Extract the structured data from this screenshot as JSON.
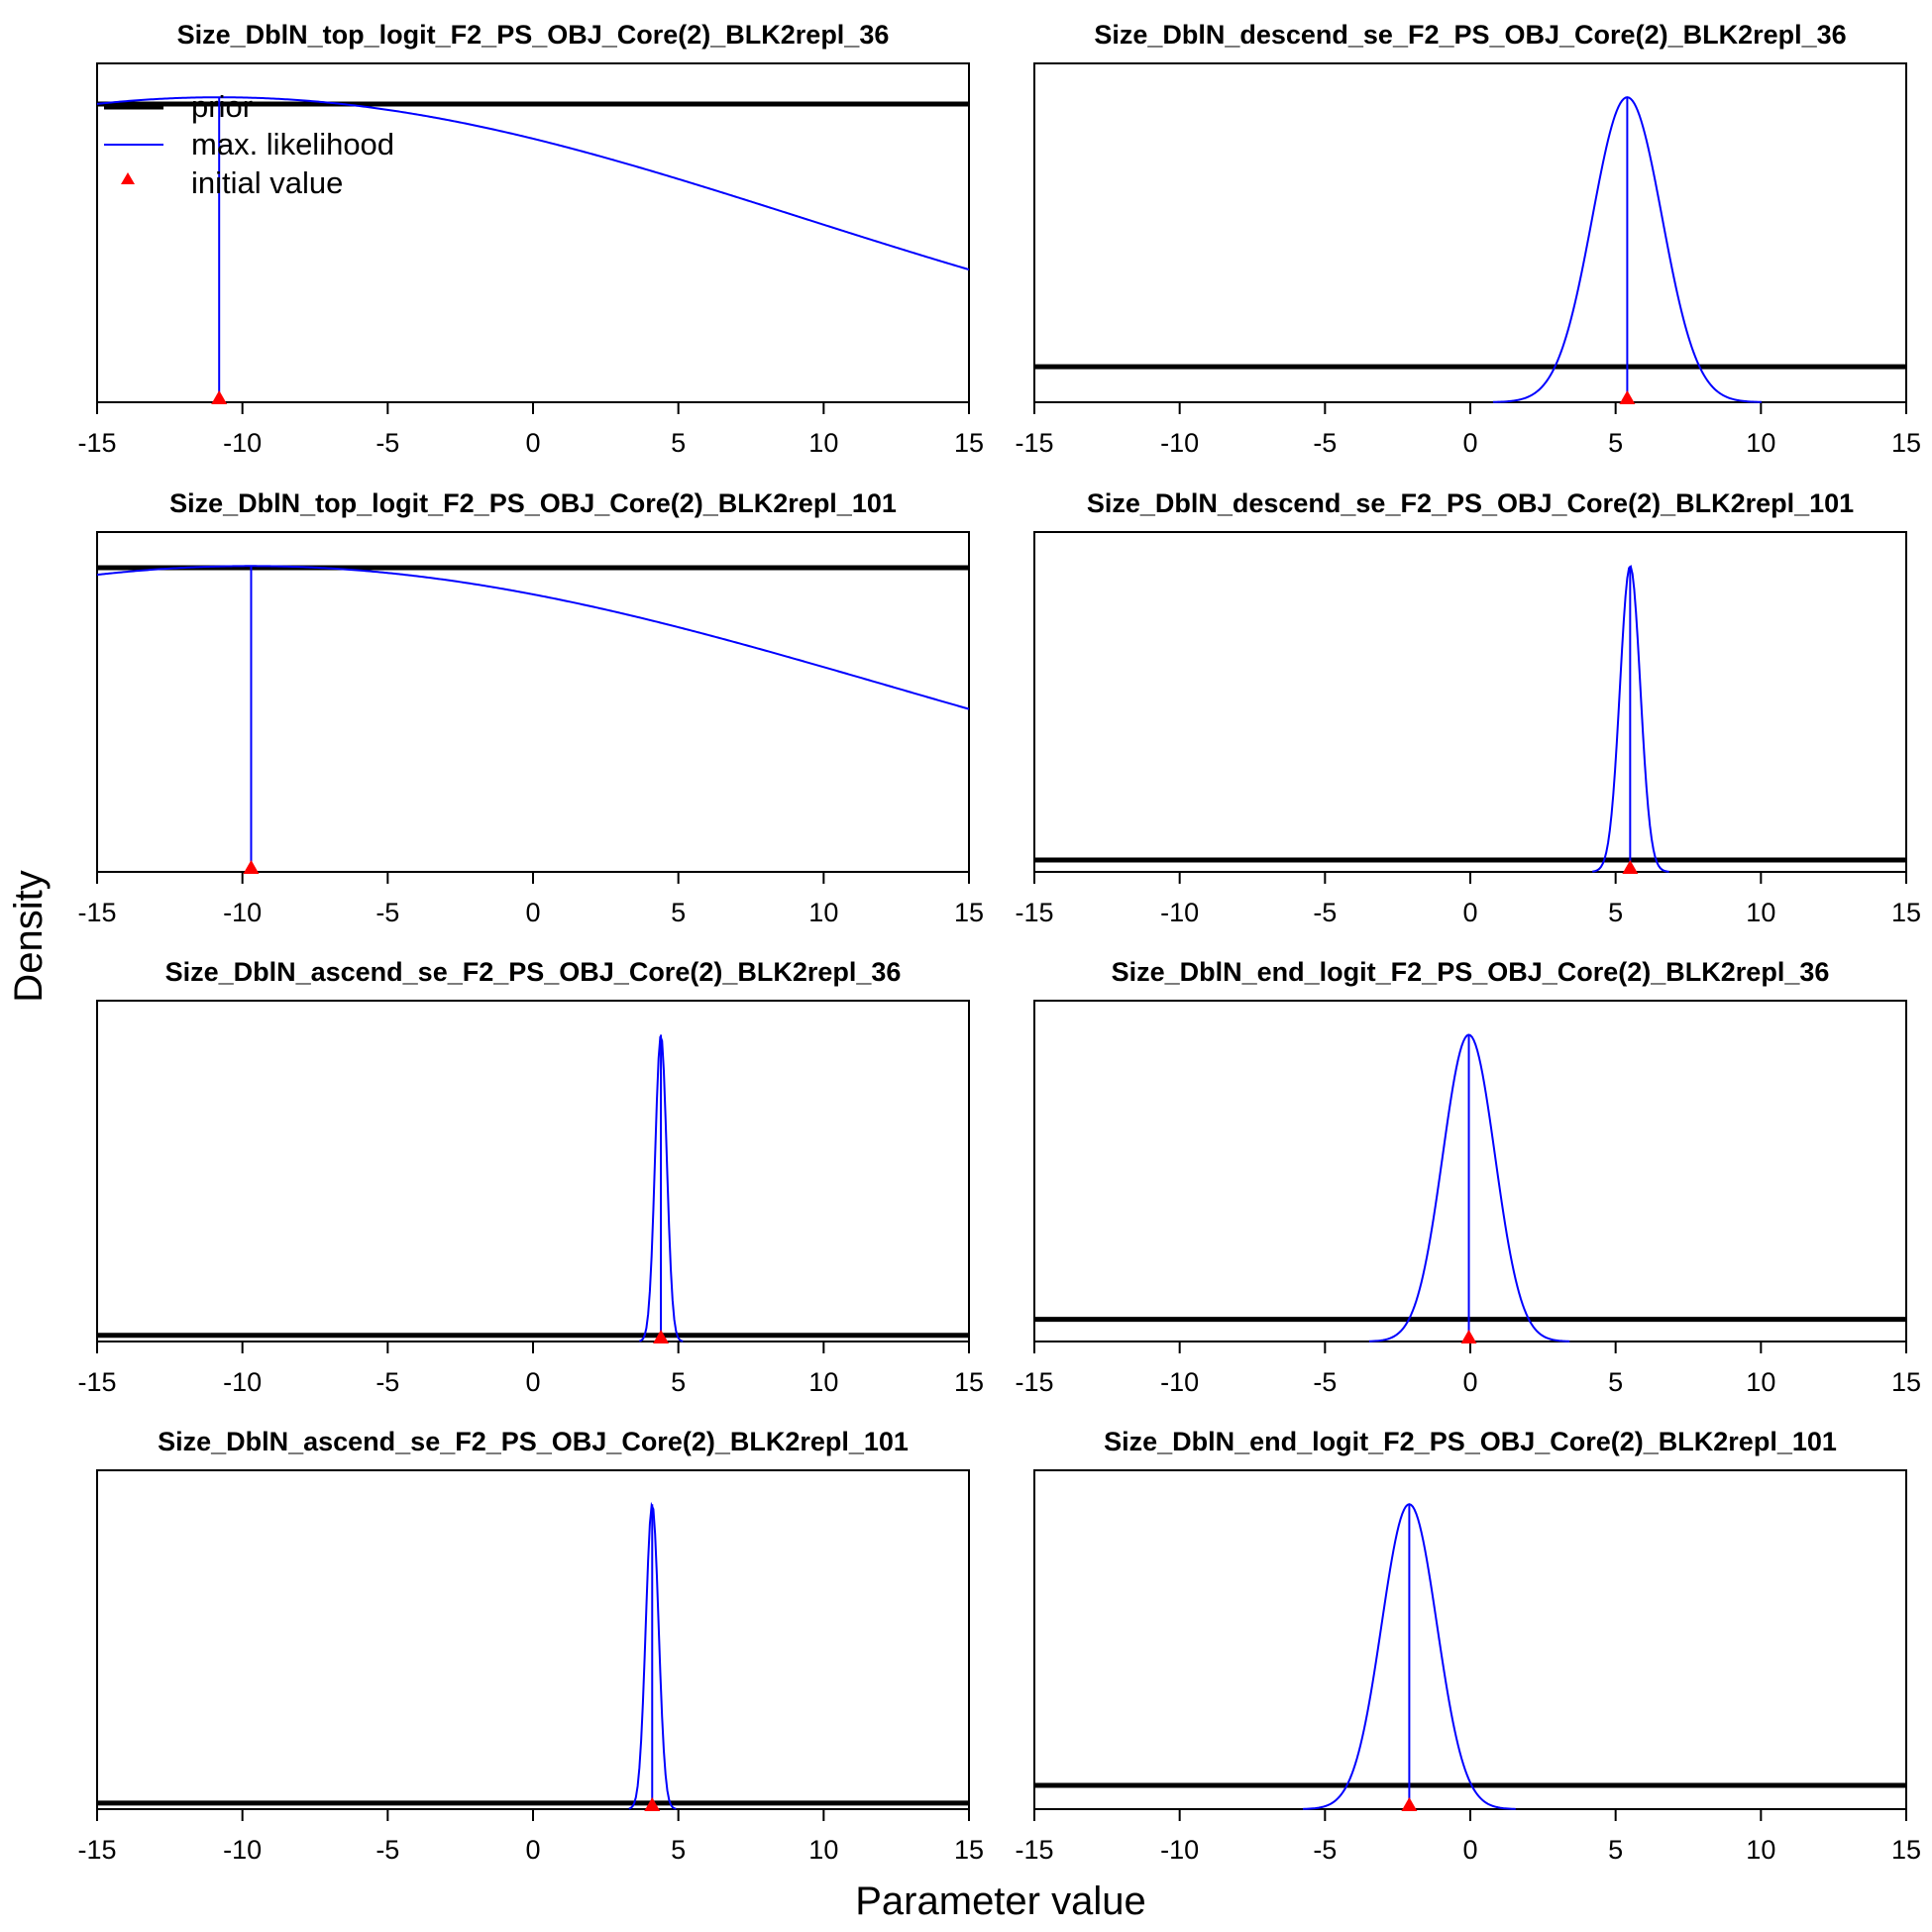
{
  "figure": {
    "ylabel": "Density",
    "xlabel": "Parameter value",
    "legend": {
      "placement": "top-left of first panel",
      "entries": [
        {
          "label": "prior",
          "color": "#000000",
          "kind": "thick-line"
        },
        {
          "label": "max. likelihood",
          "color": "#0000ff",
          "kind": "line"
        },
        {
          "label": "initial value",
          "color": "#ff0000",
          "kind": "triangle"
        }
      ]
    }
  },
  "chart_data": [
    {
      "type": "line",
      "title": "Size_DblN_top_logit_F2_PS_OBJ_Core(2)_BLK2repl_36",
      "xlim": [
        -15,
        15
      ],
      "xticks": [
        "-15",
        "-10",
        "-5",
        "0",
        "5",
        "10",
        "15"
      ],
      "prior_level": 0.88,
      "mle": -10.8,
      "mle_sd": 20,
      "mle_height": 0.9,
      "initial": -10.8
    },
    {
      "type": "line",
      "title": "Size_DblN_descend_se_F2_PS_OBJ_Core(2)_BLK2repl_36",
      "xlim": [
        -15,
        15
      ],
      "xticks": [
        "-15",
        "-10",
        "-5",
        "0",
        "5",
        "10",
        "15"
      ],
      "prior_level": 0.105,
      "mle": 5.4,
      "mle_sd": 1.2,
      "mle_height": 0.9,
      "initial": 5.4
    },
    {
      "type": "line",
      "title": "Size_DblN_top_logit_F2_PS_OBJ_Core(2)_BLK2repl_101",
      "xlim": [
        -15,
        15
      ],
      "xticks": [
        "-15",
        "-10",
        "-5",
        "0",
        "5",
        "10",
        "15"
      ],
      "prior_level": 0.895,
      "mle": -9.7,
      "mle_sd": 22,
      "mle_height": 0.9,
      "initial": -9.7
    },
    {
      "type": "line",
      "title": "Size_DblN_descend_se_F2_PS_OBJ_Core(2)_BLK2repl_101",
      "xlim": [
        -15,
        15
      ],
      "xticks": [
        "-15",
        "-10",
        "-5",
        "0",
        "5",
        "10",
        "15"
      ],
      "prior_level": 0.035,
      "mle": 5.5,
      "mle_sd": 0.35,
      "mle_height": 0.9,
      "initial": 5.5
    },
    {
      "type": "line",
      "title": "Size_DblN_ascend_se_F2_PS_OBJ_Core(2)_BLK2repl_36",
      "xlim": [
        -15,
        15
      ],
      "xticks": [
        "-15",
        "-10",
        "-5",
        "0",
        "5",
        "10",
        "15"
      ],
      "prior_level": 0.018,
      "mle": 4.4,
      "mle_sd": 0.2,
      "mle_height": 0.9,
      "initial": 4.4
    },
    {
      "type": "line",
      "title": "Size_DblN_end_logit_F2_PS_OBJ_Core(2)_BLK2repl_36",
      "xlim": [
        -15,
        15
      ],
      "xticks": [
        "-15",
        "-10",
        "-5",
        "0",
        "5",
        "10",
        "15"
      ],
      "prior_level": 0.065,
      "mle": -0.05,
      "mle_sd": 0.9,
      "mle_height": 0.9,
      "initial": -0.05
    },
    {
      "type": "line",
      "title": "Size_DblN_ascend_se_F2_PS_OBJ_Core(2)_BLK2repl_101",
      "xlim": [
        -15,
        15
      ],
      "xticks": [
        "-15",
        "-10",
        "-5",
        "0",
        "5",
        "10",
        "15"
      ],
      "prior_level": 0.018,
      "mle": 4.1,
      "mle_sd": 0.22,
      "mle_height": 0.9,
      "initial": 4.1
    },
    {
      "type": "line",
      "title": "Size_DblN_end_logit_F2_PS_OBJ_Core(2)_BLK2repl_101",
      "xlim": [
        -15,
        15
      ],
      "xticks": [
        "-15",
        "-10",
        "-5",
        "0",
        "5",
        "10",
        "15"
      ],
      "prior_level": 0.07,
      "mle": -2.1,
      "mle_sd": 0.95,
      "mle_height": 0.9,
      "initial": -2.1
    }
  ]
}
